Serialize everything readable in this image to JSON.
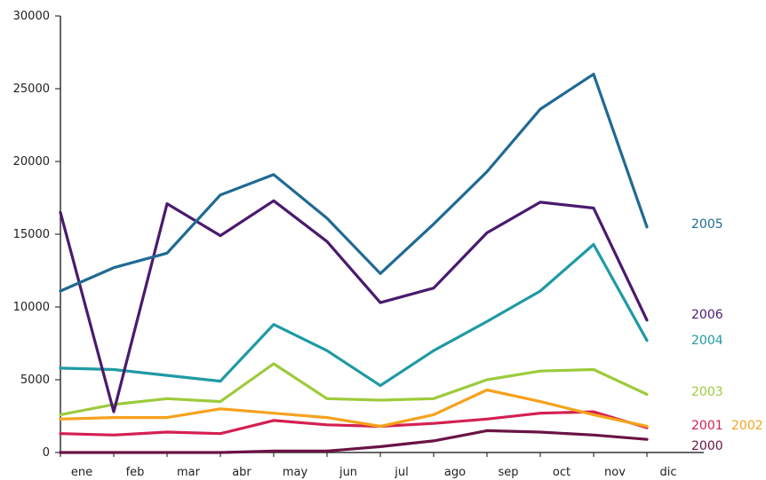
{
  "chart_data": {
    "type": "line",
    "title": "",
    "xlabel": "",
    "ylabel": "",
    "categories": [
      "ene",
      "feb",
      "mar",
      "abr",
      "may",
      "jun",
      "jul",
      "ago",
      "sep",
      "oct",
      "nov",
      "dic"
    ],
    "ylim": [
      0,
      30000
    ],
    "yticks": [
      "0",
      "5000",
      "10000",
      "15000",
      "20000",
      "25000",
      "30000"
    ],
    "grid": false,
    "legend": "inline-right",
    "series": [
      {
        "name": "2005",
        "color": "#1f6a93",
        "values": [
          11100,
          12700,
          13700,
          17700,
          19100,
          16100,
          12300,
          15700,
          19300,
          23600,
          26000,
          15500
        ]
      },
      {
        "name": "2006",
        "color": "#4a1a6e",
        "values": [
          16500,
          2800,
          17100,
          14900,
          17300,
          14500,
          10300,
          11300,
          15100,
          17200,
          16800,
          9100
        ]
      },
      {
        "name": "2004",
        "color": "#1f9aa4",
        "values": [
          5800,
          5700,
          5300,
          4900,
          8800,
          7000,
          4600,
          7000,
          9000,
          11100,
          14300,
          7700
        ]
      },
      {
        "name": "2003",
        "color": "#9ccb3b",
        "values": [
          2600,
          3300,
          3700,
          3500,
          6100,
          3700,
          3600,
          3700,
          5000,
          5600,
          5700,
          4000
        ]
      },
      {
        "name": "2002",
        "color": "#f5a21c",
        "values": [
          2300,
          2400,
          2400,
          3000,
          2700,
          2400,
          1800,
          2600,
          4300,
          3500,
          2600,
          1800
        ]
      },
      {
        "name": "2001",
        "color": "#d42051",
        "values": [
          1300,
          1200,
          1400,
          1300,
          2200,
          1900,
          1800,
          2000,
          2300,
          2700,
          2800,
          1700
        ]
      },
      {
        "name": "2000",
        "color": "#6a1345",
        "values": [
          0,
          0,
          0,
          0,
          100,
          100,
          400,
          800,
          1500,
          1400,
          1200,
          900
        ]
      }
    ]
  }
}
